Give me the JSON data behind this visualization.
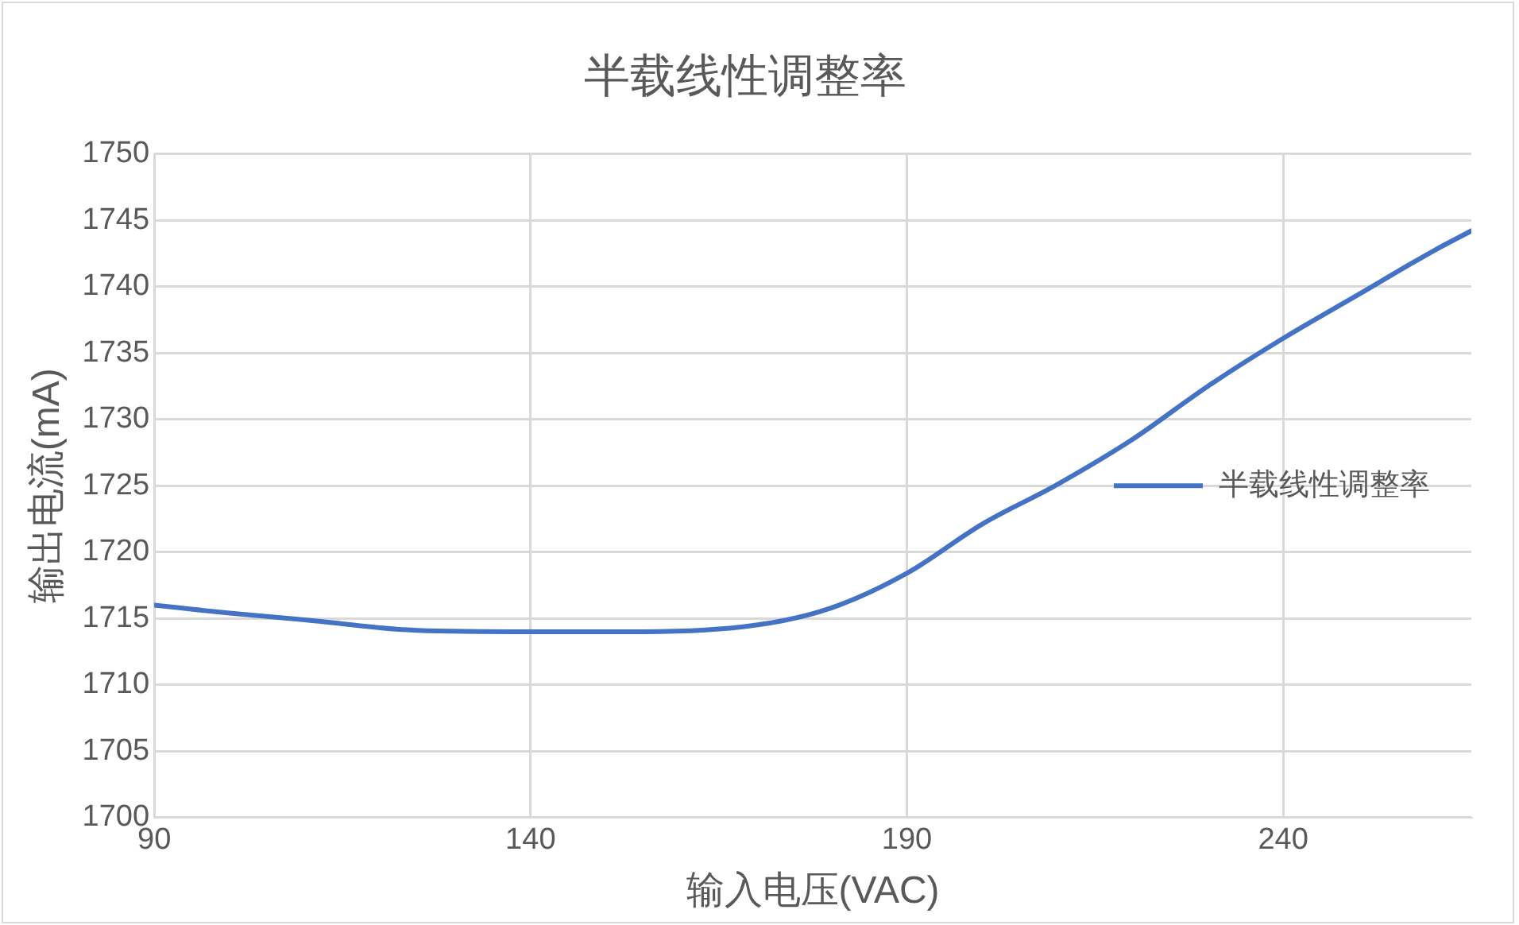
{
  "chart_data": {
    "type": "line",
    "title": "半载线性调整率",
    "xlabel": "输入电压(VAC)",
    "ylabel": "输出电流(mA)",
    "x": [
      90,
      100,
      110,
      125,
      140,
      155,
      170,
      180,
      190,
      200,
      210,
      220,
      230,
      240,
      250,
      260,
      265
    ],
    "series": [
      {
        "name": "半载线性调整率",
        "color": "#4472c4",
        "values": [
          1716,
          1715.4,
          1714.9,
          1714.1,
          1714,
          1714,
          1714.5,
          1715.8,
          1718.4,
          1722.1,
          1725.1,
          1728.5,
          1732.5,
          1736.1,
          1739.4,
          1742.7,
          1744.2
        ]
      }
    ],
    "xlim": [
      90,
      265
    ],
    "xticks": [
      90,
      140,
      190,
      240
    ],
    "ylim": [
      1700,
      1750
    ],
    "yticks": [
      1700,
      1705,
      1710,
      1715,
      1720,
      1725,
      1730,
      1735,
      1740,
      1745,
      1750
    ],
    "grid": true,
    "legend": "right",
    "marker": "none",
    "line_style": "solid"
  }
}
